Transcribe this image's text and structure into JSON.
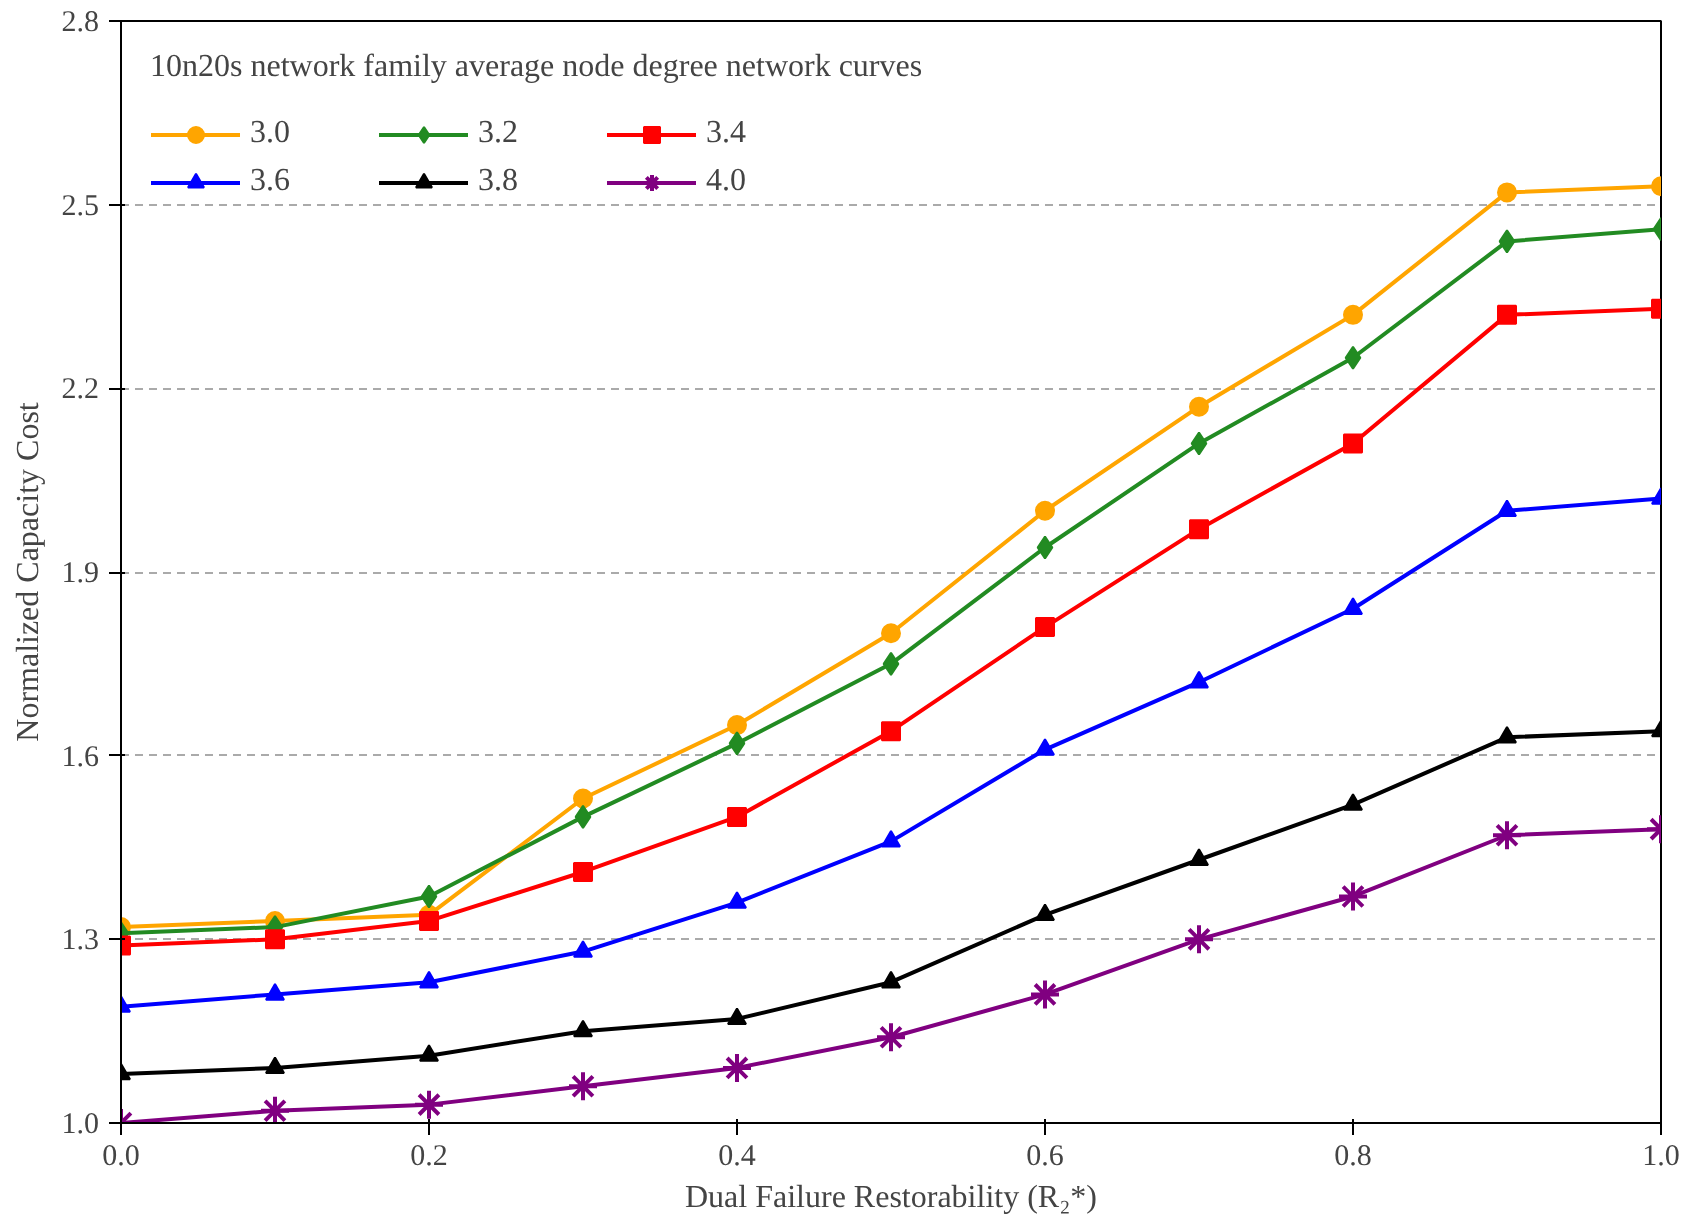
{
  "chart_data": {
    "type": "line",
    "xlabel": "Dual Failure Restorability (R₂*)",
    "ylabel": "Normalized Capacity Cost",
    "legend_title": "10n20s network family average node degree network curves",
    "x": [
      0,
      0.1,
      0.2,
      0.3,
      0.4,
      0.5,
      0.6,
      0.7,
      0.8,
      0.9,
      1.0
    ],
    "xlim": [
      0,
      1
    ],
    "ylim": [
      1.0,
      2.8
    ],
    "xticks": [
      {
        "value": 0,
        "label": "0.0"
      },
      {
        "value": 0.2,
        "label": "0.2"
      },
      {
        "value": 0.4,
        "label": "0.4"
      },
      {
        "value": 0.6,
        "label": "0.6"
      },
      {
        "value": 0.8,
        "label": "0.8"
      },
      {
        "value": 1,
        "label": "1.0"
      }
    ],
    "yticks": [
      {
        "value": 1.0,
        "label": "1.0"
      },
      1.3,
      1.6,
      1.9,
      2.2,
      2.5,
      2.8
    ],
    "grid": "y",
    "legend": "top left",
    "line_style": "solid",
    "series": [
      {
        "name": "3.0",
        "color": "#ffa500",
        "marker": "circle",
        "values": [
          1.32,
          1.33,
          1.34,
          1.53,
          1.65,
          1.8,
          2.0,
          2.17,
          2.32,
          2.52,
          2.53
        ]
      },
      {
        "name": "3.2",
        "color": "#228b22",
        "marker": "diamond",
        "values": [
          1.31,
          1.32,
          1.37,
          1.5,
          1.62,
          1.75,
          1.94,
          2.11,
          2.25,
          2.44,
          2.46
        ]
      },
      {
        "name": "3.4",
        "color": "#ff0000",
        "marker": "square",
        "values": [
          1.29,
          1.3,
          1.33,
          1.41,
          1.5,
          1.64,
          1.81,
          1.97,
          2.11,
          2.32,
          2.33
        ]
      },
      {
        "name": "3.6",
        "color": "#0000ff",
        "marker": "triangle",
        "values": [
          1.19,
          1.21,
          1.23,
          1.28,
          1.36,
          1.46,
          1.61,
          1.72,
          1.84,
          2.0,
          2.02
        ]
      },
      {
        "name": "3.8",
        "color": "#000000",
        "marker": "triangle",
        "values": [
          1.08,
          1.09,
          1.11,
          1.15,
          1.17,
          1.23,
          1.34,
          1.43,
          1.52,
          1.63,
          1.64
        ]
      },
      {
        "name": "4.0",
        "color": "#800080",
        "marker": "cross",
        "values": [
          1.0,
          1.02,
          1.03,
          1.06,
          1.09,
          1.14,
          1.21,
          1.3,
          1.37,
          1.47,
          1.48
        ]
      }
    ]
  }
}
